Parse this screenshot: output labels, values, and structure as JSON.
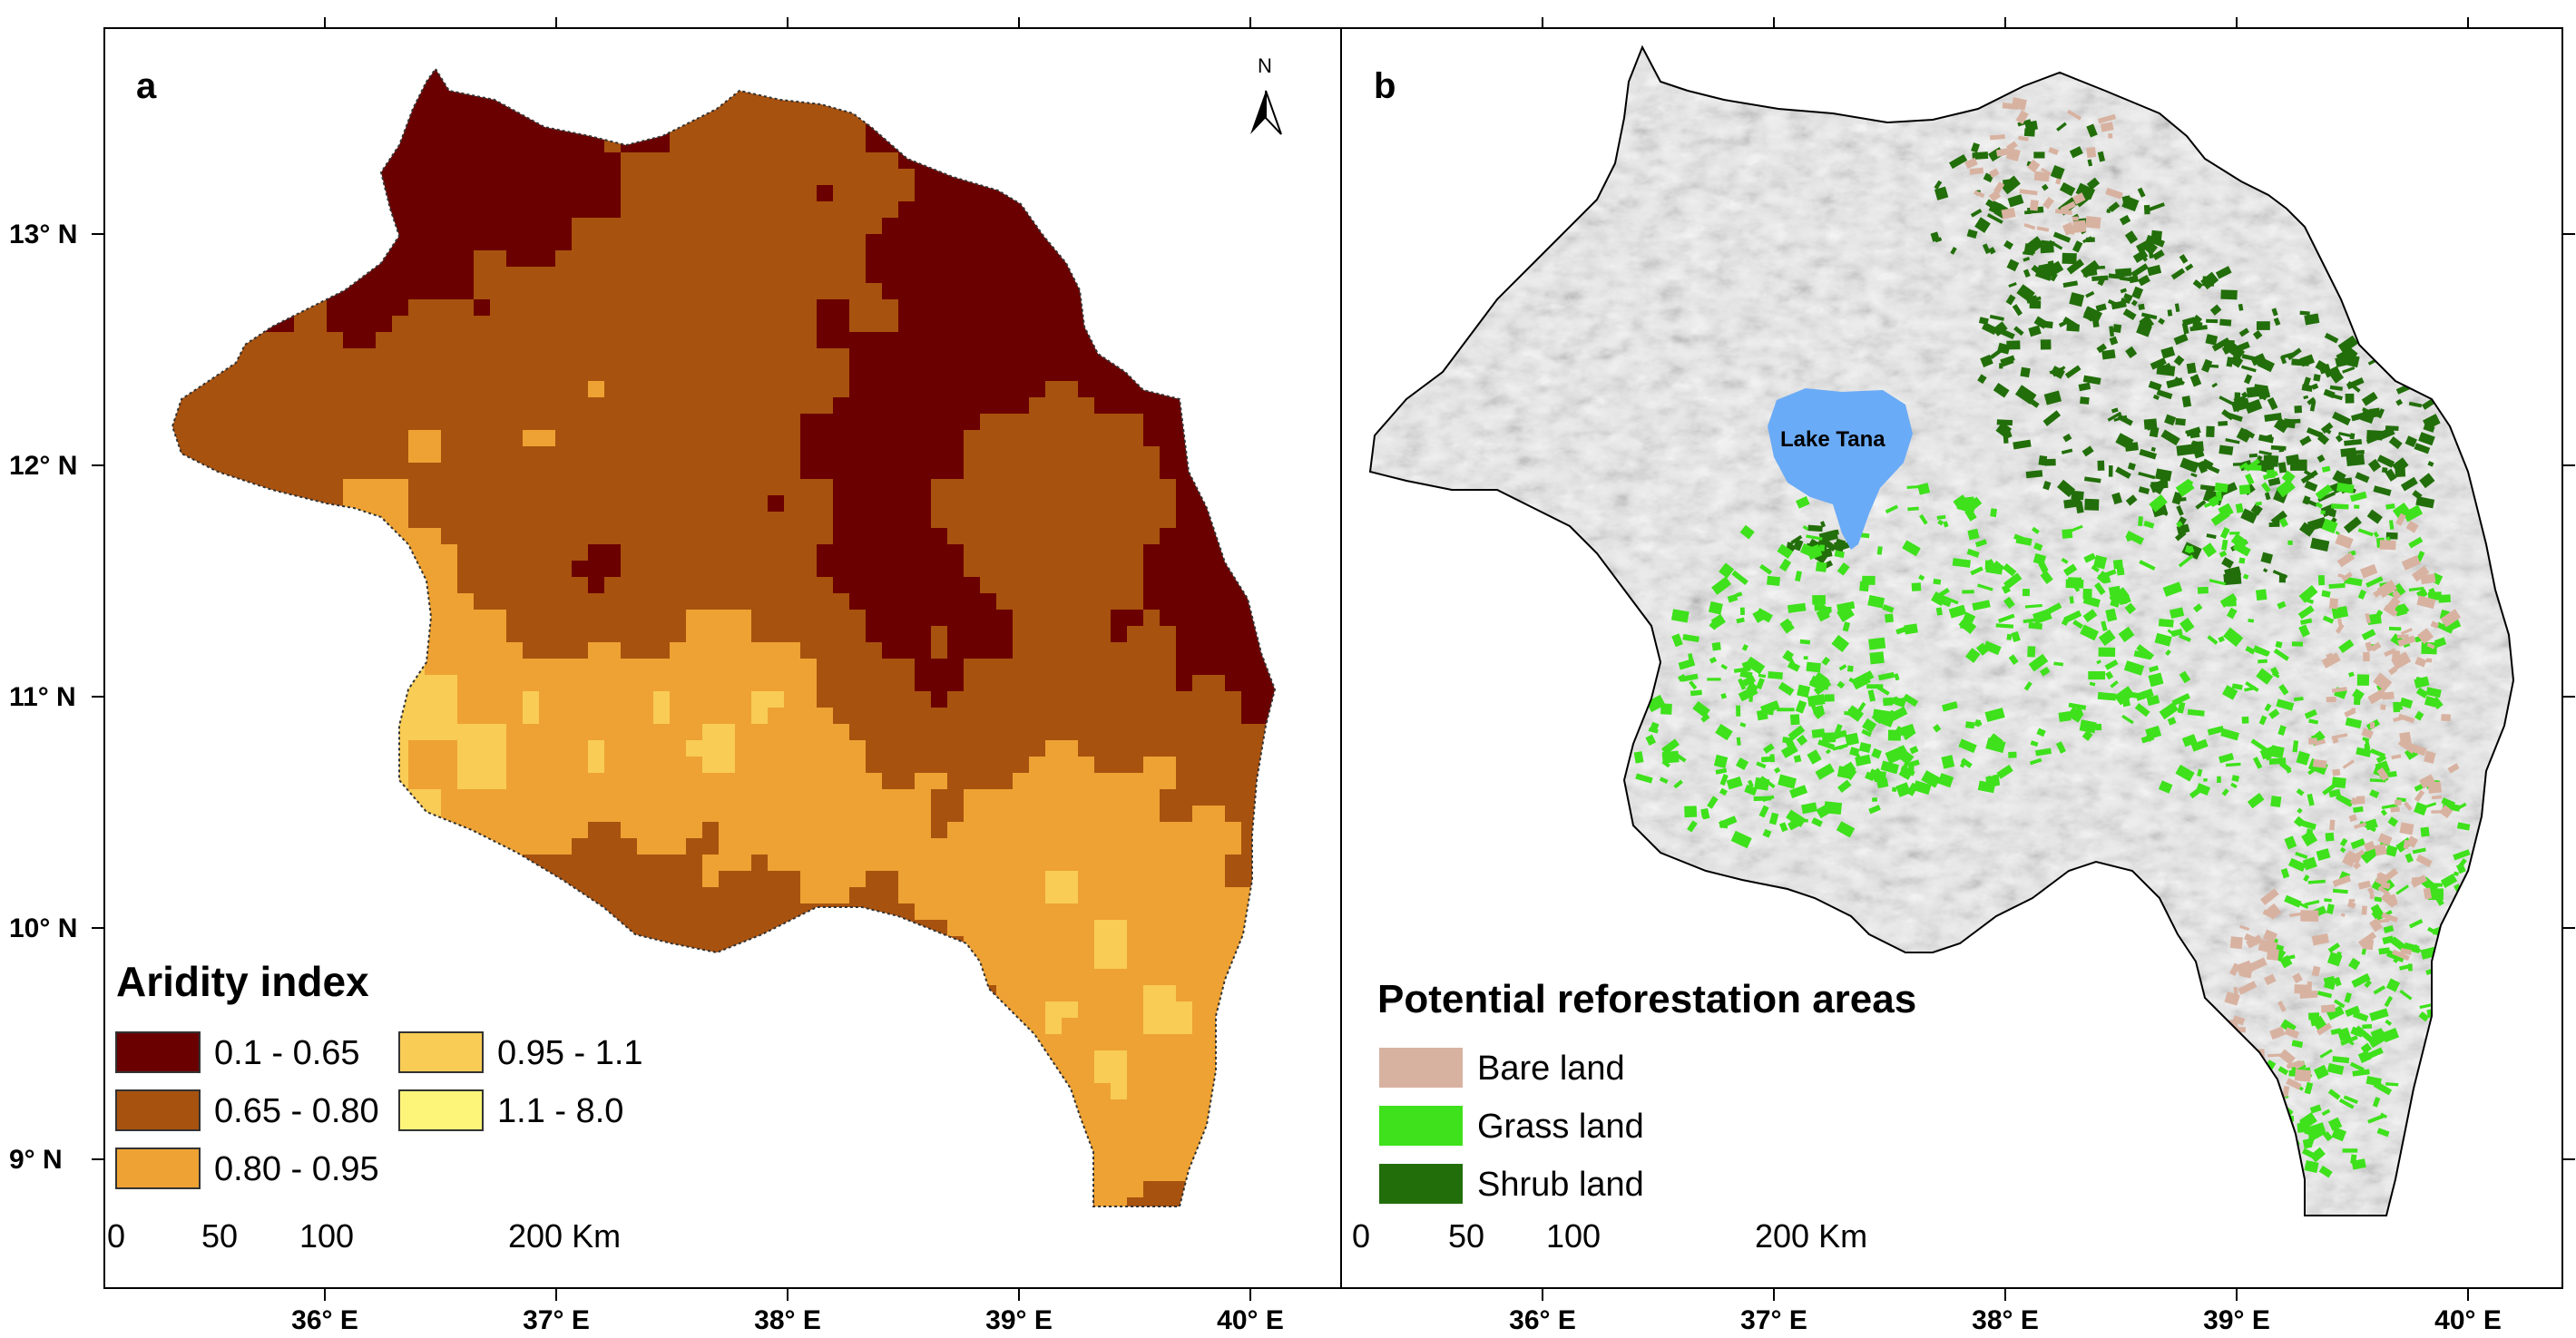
{
  "figure": {
    "panel_a": {
      "letter": "a",
      "legend_title": "Aridity index",
      "classes": [
        {
          "label": "0.1 - 0.65",
          "color": "#6b0000"
        },
        {
          "label": "0.65 - 0.80",
          "color": "#a8520f"
        },
        {
          "label": "0.80 - 0.95",
          "color": "#eea233"
        },
        {
          "label": "0.95 - 1.1",
          "color": "#f8cc55"
        },
        {
          "label": "1.1 - 8.0",
          "color": "#fdf57a"
        }
      ],
      "north_label": "N",
      "scalebar": {
        "ticks": [
          "0",
          "50",
          "100"
        ],
        "end_label": "200 Km"
      }
    },
    "panel_b": {
      "letter": "b",
      "lake_label": "Lake Tana",
      "legend_title": "Potential reforestation areas",
      "classes": [
        {
          "label": "Bare land",
          "color": "#d8b2a1"
        },
        {
          "label": "Grass land",
          "color": "#3ee11b"
        },
        {
          "label": "Shrub land",
          "color": "#226e0a"
        }
      ],
      "lake_color": "#6aabf7",
      "scalebar": {
        "ticks": [
          "0",
          "50",
          "100"
        ],
        "end_label": "200 Km"
      }
    },
    "y_axis_labels": [
      "13° N",
      "12° N",
      "11° N",
      "10° N",
      "9° N"
    ],
    "x_axis_labels": [
      "36° E",
      "37° E",
      "38° E",
      "39° E",
      "40° E"
    ]
  }
}
